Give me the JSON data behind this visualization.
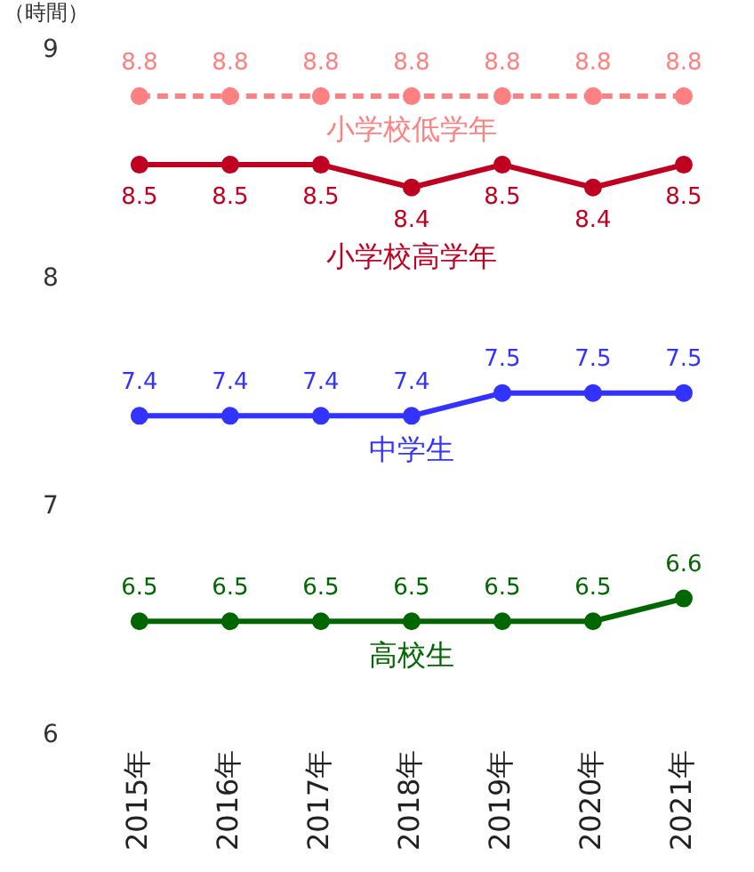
{
  "chart_data": {
    "type": "line",
    "ylabel": "（時間）",
    "categories": [
      "2015年",
      "2016年",
      "2017年",
      "2018年",
      "2019年",
      "2020年",
      "2021年"
    ],
    "ylim": [
      6,
      9
    ],
    "yticks": [
      6,
      7,
      8,
      9
    ],
    "grid": false,
    "legend": false,
    "marker": "circle",
    "data_labels": true,
    "series": [
      {
        "name": "小学校低学年",
        "color": "#ff8080",
        "line_style": "dashed",
        "values": [
          8.8,
          8.8,
          8.8,
          8.8,
          8.8,
          8.8,
          8.8
        ]
      },
      {
        "name": "小学校高学年",
        "color": "#c00020",
        "line_style": "solid",
        "values": [
          8.5,
          8.5,
          8.5,
          8.4,
          8.5,
          8.4,
          8.5
        ]
      },
      {
        "name": "中学生",
        "color": "#3333ff",
        "line_style": "solid",
        "values": [
          7.4,
          7.4,
          7.4,
          7.4,
          7.5,
          7.5,
          7.5
        ]
      },
      {
        "name": "高校生",
        "color": "#006600",
        "line_style": "solid",
        "values": [
          6.5,
          6.5,
          6.5,
          6.5,
          6.5,
          6.5,
          6.6
        ]
      }
    ]
  }
}
